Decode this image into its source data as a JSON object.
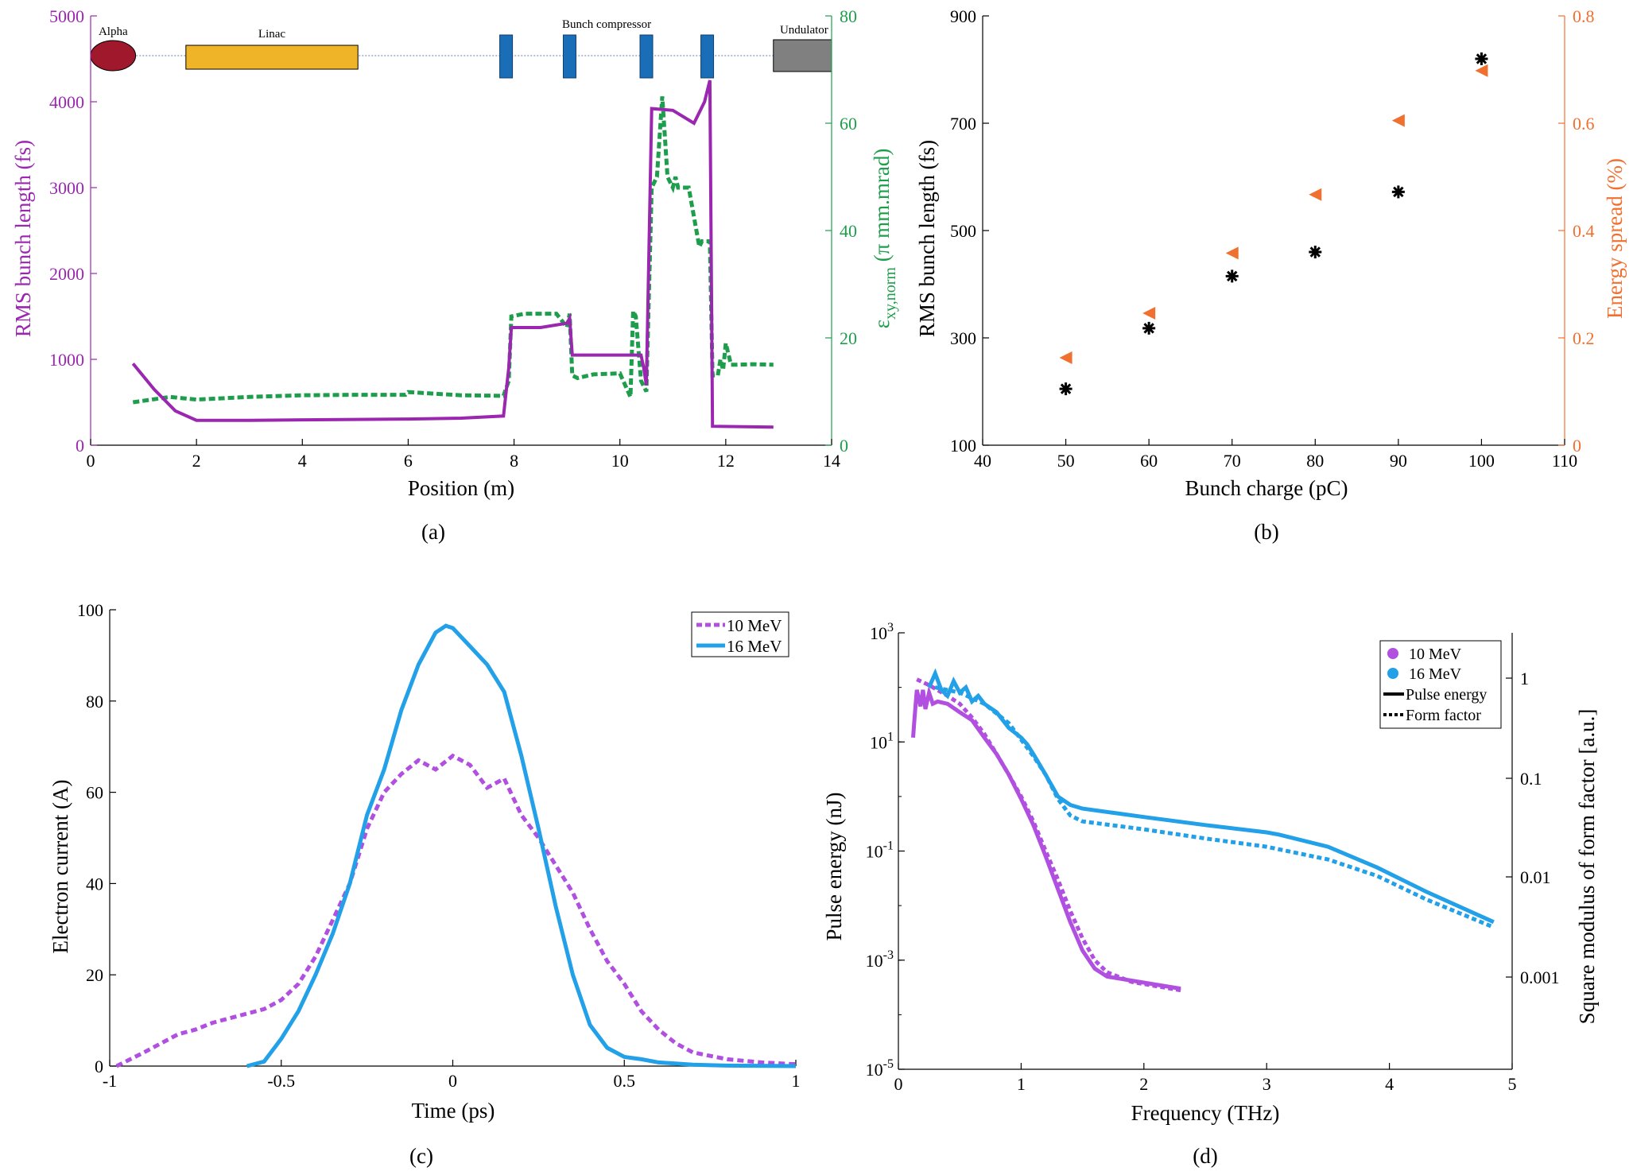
{
  "colors": {
    "purple": "#9b27b0",
    "green": "#1e9e4c",
    "orange": "#f07030",
    "blue": "#22a0e8",
    "violet": "#b04fe0",
    "black": "#000000",
    "alpha": "#a0182c",
    "linac": "#f0b428",
    "magnet": "#1a6eb8",
    "undulator": "#808080"
  },
  "chart_data": [
    {
      "panel": "a",
      "caption": "(a)",
      "type": "line",
      "xlabel": "Position (m)",
      "ylabel": "RMS bunch length (fs)",
      "y2label_main": "ε",
      "y2label_sub": "xy,norm",
      "y2label_rest": " (π mm.mrad)",
      "xlim": [
        0,
        14
      ],
      "ylim": [
        0,
        5000
      ],
      "y2lim": [
        0,
        80
      ],
      "xticks": [
        "0",
        "2",
        "4",
        "6",
        "8",
        "10",
        "12",
        "14"
      ],
      "yticks": [
        "0",
        "1000",
        "2000",
        "3000",
        "4000",
        "5000"
      ],
      "y2ticks": [
        "0",
        "20",
        "40",
        "60",
        "80"
      ],
      "beamline": [
        {
          "label": "Alpha",
          "start": 0.0,
          "end": 0.85,
          "kind": "ellipse"
        },
        {
          "label": "Linac",
          "start": 1.8,
          "end": 5.05,
          "kind": "box"
        },
        {
          "label": "Bunch compressor",
          "start": 7.6,
          "end": 11.6,
          "kind": "magnets",
          "magnets": [
            7.85,
            9.05,
            10.5,
            11.65
          ]
        },
        {
          "label": "Undulator",
          "start": 12.9,
          "end": 14.0,
          "kind": "box"
        }
      ],
      "series": [
        {
          "name": "RMS bunch length",
          "axis": "left",
          "style": "solid",
          "x": [
            0.8,
            1.2,
            1.6,
            2.0,
            3,
            4,
            5,
            6,
            7,
            7.8,
            7.9,
            7.95,
            8.5,
            9.0,
            9.05,
            9.1,
            10.0,
            10.4,
            10.45,
            10.5,
            10.6,
            11.0,
            11.4,
            11.6,
            11.7,
            11.75,
            12.9
          ],
          "y": [
            950,
            650,
            400,
            290,
            290,
            295,
            300,
            305,
            315,
            340,
            900,
            1370,
            1370,
            1420,
            1480,
            1050,
            1050,
            1050,
            900,
            700,
            3920,
            3900,
            3750,
            4000,
            4250,
            220,
            210
          ]
        },
        {
          "name": "Normalized emittance",
          "axis": "right",
          "style": "dashed",
          "x": [
            0.8,
            1.5,
            2.0,
            3,
            4,
            5,
            5.95,
            6.0,
            7,
            7.8,
            7.9,
            7.95,
            8.2,
            8.8,
            9.0,
            9.05,
            9.1,
            9.2,
            9.5,
            10.0,
            10.2,
            10.25,
            10.3,
            10.4,
            10.5,
            10.6,
            10.7,
            10.8,
            10.9,
            11.0,
            11.05,
            11.1,
            11.3,
            11.5,
            11.55,
            11.7,
            11.75,
            11.85,
            11.9,
            11.95,
            12.0,
            12.1,
            12.2,
            12.5,
            12.9
          ],
          "y": [
            8,
            9,
            8.5,
            9,
            9.3,
            9.4,
            9.4,
            9.9,
            9.3,
            9.2,
            12,
            24,
            24.5,
            24.5,
            22,
            24.5,
            13,
            12.5,
            13.2,
            13.4,
            9,
            25,
            24,
            12,
            10,
            48,
            50,
            65,
            50,
            48,
            50,
            48,
            48,
            37,
            38,
            38,
            13,
            13,
            16,
            14,
            19,
            15,
            15,
            15.1,
            15
          ]
        }
      ]
    },
    {
      "panel": "b",
      "caption": "(b)",
      "type": "scatter",
      "xlabel": "Bunch charge (pC)",
      "ylabel": "RMS bunch length (fs)",
      "y2label": "Energy spread (%)",
      "xlim": [
        40,
        110
      ],
      "ylim": [
        100,
        900
      ],
      "y2lim": [
        0,
        0.8
      ],
      "xticks": [
        "40",
        "50",
        "60",
        "70",
        "80",
        "90",
        "100",
        "110"
      ],
      "yticks": [
        "100",
        "300",
        "500",
        "700",
        "900"
      ],
      "y2ticks": [
        "0",
        "0.2",
        "0.4",
        "0.6",
        "0.8"
      ],
      "series": [
        {
          "name": "RMS bunch length",
          "axis": "left",
          "marker": "asterisk",
          "x": [
            50,
            60,
            70,
            80,
            90,
            100
          ],
          "y": [
            205,
            318,
            415,
            460,
            572,
            820
          ]
        },
        {
          "name": "Energy spread",
          "axis": "right",
          "marker": "triangle-left",
          "x": [
            50,
            60,
            70,
            80,
            90,
            100
          ],
          "y": [
            0.163,
            0.246,
            0.358,
            0.467,
            0.605,
            0.698
          ]
        }
      ]
    },
    {
      "panel": "c",
      "caption": "(c)",
      "type": "line",
      "xlabel": "Time (ps)",
      "ylabel": "Electron current (A)",
      "xlim": [
        -1,
        1
      ],
      "ylim": [
        0,
        100
      ],
      "xticks": [
        "-1",
        "-0.5",
        "0",
        "0.5",
        "1"
      ],
      "yticks": [
        "0",
        "20",
        "40",
        "60",
        "80",
        "100"
      ],
      "legend": [
        "10 MeV",
        "16 MeV"
      ],
      "series": [
        {
          "name": "10 MeV",
          "style": "dashed",
          "x": [
            -0.98,
            -0.9,
            -0.85,
            -0.8,
            -0.75,
            -0.7,
            -0.6,
            -0.55,
            -0.5,
            -0.45,
            -0.4,
            -0.35,
            -0.3,
            -0.25,
            -0.2,
            -0.15,
            -0.1,
            -0.05,
            0.0,
            0.05,
            0.1,
            0.15,
            0.2,
            0.25,
            0.3,
            0.35,
            0.4,
            0.45,
            0.5,
            0.55,
            0.6,
            0.65,
            0.7,
            0.8,
            0.9,
            1.0
          ],
          "y": [
            0,
            3,
            5,
            7,
            8,
            9.5,
            11.5,
            12.5,
            14.5,
            18,
            24,
            32,
            40,
            52,
            60,
            64,
            67,
            65,
            68,
            66,
            61,
            63,
            55,
            50,
            44,
            38,
            30,
            23,
            18,
            12,
            8,
            5,
            3,
            1.5,
            0.8,
            0.4
          ]
        },
        {
          "name": "16 MeV",
          "style": "solid",
          "x": [
            -0.6,
            -0.55,
            -0.5,
            -0.45,
            -0.4,
            -0.35,
            -0.3,
            -0.25,
            -0.2,
            -0.15,
            -0.1,
            -0.05,
            -0.02,
            0.0,
            0.05,
            0.1,
            0.15,
            0.2,
            0.25,
            0.3,
            0.35,
            0.4,
            0.45,
            0.5,
            0.55,
            0.6,
            0.7,
            0.8,
            1.0
          ],
          "y": [
            0,
            1,
            6,
            12,
            20,
            29,
            40,
            55,
            65,
            78,
            88,
            95,
            96.5,
            96,
            92,
            88,
            82,
            68,
            52,
            35,
            20,
            9,
            4,
            2,
            1.5,
            0.8,
            0.3,
            0.1,
            0
          ]
        }
      ]
    },
    {
      "panel": "d",
      "caption": "(d)",
      "type": "line",
      "xlabel": "Frequency (THz)",
      "ylabel_main": "Pulse energy (nJ)",
      "y2label": "Square modulus of form factor [a.u.]",
      "yscale": "log",
      "xlim": [
        0,
        5
      ],
      "ylim": [
        1e-05,
        1000
      ],
      "xticks": [
        "0",
        "1",
        "2",
        "3",
        "4",
        "5"
      ],
      "ytick_bases": [
        "10",
        "10",
        "10",
        "10",
        "10"
      ],
      "ytick_exps": [
        "-5",
        "-3",
        "-1",
        "1",
        "3"
      ],
      "y2ticks": [
        "0.001",
        "0.01",
        "0.1",
        "1"
      ],
      "legend": [
        "10 MeV",
        "16 MeV",
        "Pulse energy",
        "Form factor"
      ],
      "series": [
        {
          "name": "10 MeV pulse energy",
          "style": "solid",
          "x": [
            0.12,
            0.13,
            0.15,
            0.18,
            0.2,
            0.22,
            0.25,
            0.28,
            0.32,
            0.4,
            0.5,
            0.6,
            0.7,
            0.8,
            0.9,
            1.0,
            1.1,
            1.2,
            1.3,
            1.4,
            1.5,
            1.6,
            1.7,
            2.3
          ],
          "y": [
            12,
            25,
            90,
            45,
            90,
            40,
            80,
            50,
            55,
            50,
            35,
            25,
            12,
            6,
            2.5,
            0.9,
            0.3,
            0.08,
            0.02,
            0.005,
            0.0015,
            0.0007,
            0.0005,
            0.0003
          ]
        },
        {
          "name": "10 MeV form factor",
          "style": "dotted",
          "x": [
            0.15,
            0.25,
            0.4,
            0.5,
            0.6,
            0.7,
            0.8,
            0.9,
            1.0,
            1.1,
            1.2,
            1.3,
            1.4,
            1.5,
            1.6,
            1.7,
            1.9,
            2.3
          ],
          "y": [
            140,
            110,
            70,
            50,
            28,
            14,
            6,
            2.5,
            1.0,
            0.35,
            0.1,
            0.03,
            0.008,
            0.0025,
            0.001,
            0.0006,
            0.0004,
            0.00028
          ]
        },
        {
          "name": "16 MeV pulse energy",
          "style": "solid",
          "x": [
            0.25,
            0.3,
            0.35,
            0.4,
            0.45,
            0.5,
            0.55,
            0.6,
            0.65,
            0.7,
            0.8,
            0.9,
            1.0,
            1.05,
            1.1,
            1.2,
            1.3,
            1.4,
            1.5,
            2.0,
            2.5,
            3.0,
            3.1,
            3.5,
            3.9,
            4.3,
            4.85
          ],
          "y": [
            100,
            180,
            90,
            70,
            130,
            80,
            100,
            55,
            70,
            50,
            35,
            18,
            12,
            9,
            6,
            2.5,
            1.0,
            0.7,
            0.6,
            0.42,
            0.3,
            0.22,
            0.2,
            0.12,
            0.05,
            0.018,
            0.005
          ]
        },
        {
          "name": "16 MeV form factor",
          "style": "dotted",
          "x": [
            0.3,
            0.5,
            0.7,
            0.9,
            1.0,
            1.1,
            1.2,
            1.3,
            1.4,
            1.5,
            2.0,
            2.5,
            3.0,
            3.5,
            3.9,
            4.3,
            4.85
          ],
          "y": [
            100,
            80,
            50,
            22,
            11,
            5.5,
            2.5,
            0.9,
            0.45,
            0.35,
            0.25,
            0.17,
            0.12,
            0.07,
            0.035,
            0.013,
            0.004
          ]
        }
      ]
    }
  ]
}
